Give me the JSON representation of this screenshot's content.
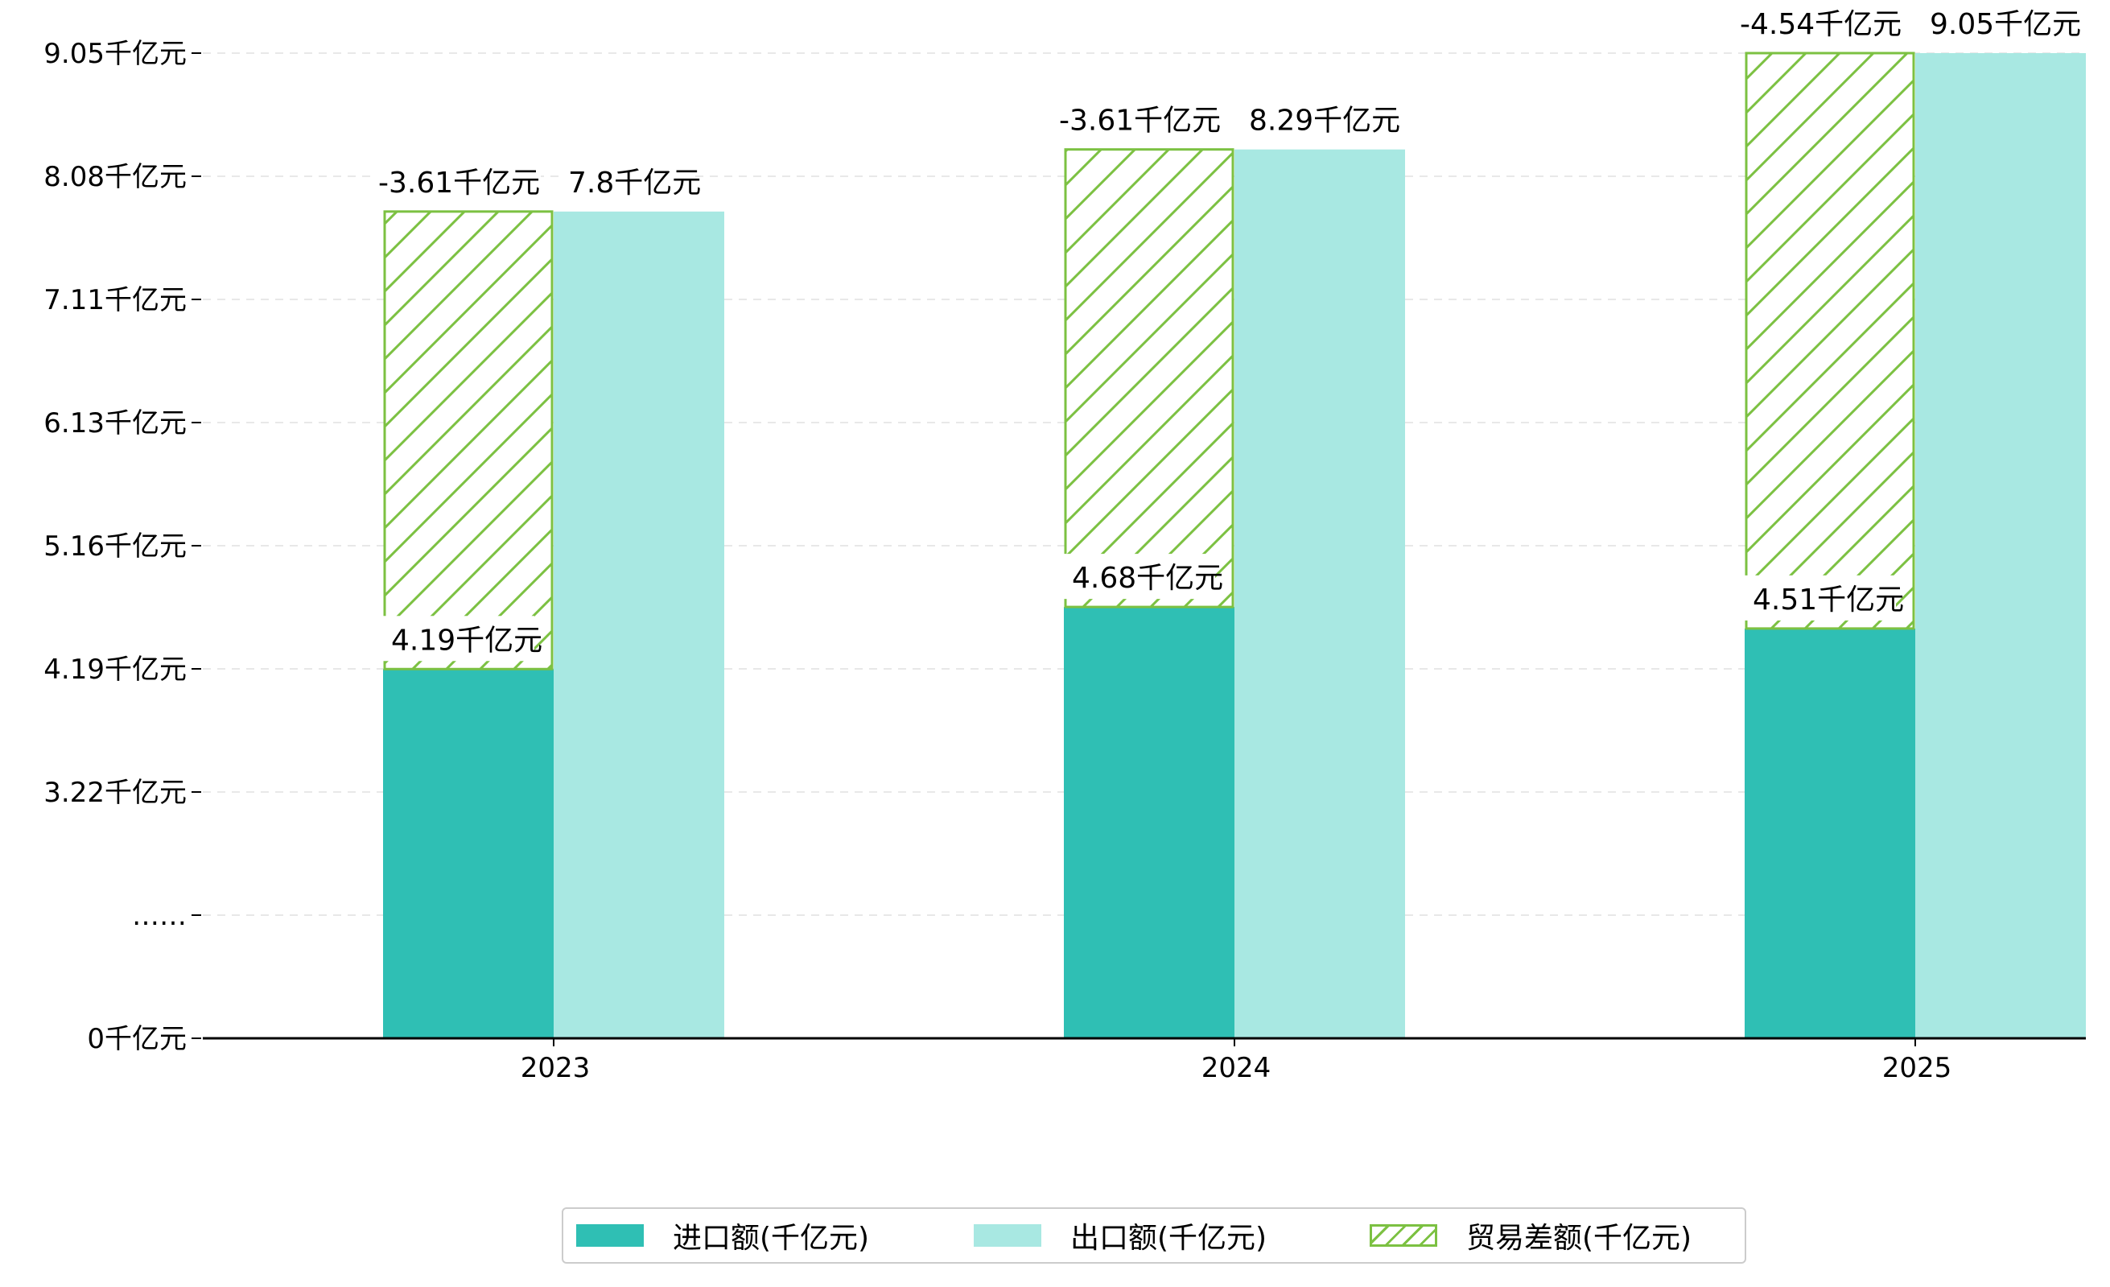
{
  "colors": {
    "import": "#2fbfb4",
    "export": "#a8e8e2",
    "balance": "#7cc142",
    "grid": "#e8e8e8",
    "axis": "#000000"
  },
  "chart_data": {
    "type": "bar",
    "categories": [
      "2023",
      "2024",
      "2025"
    ],
    "ylim": [
      0,
      9.05
    ],
    "y_tick_labels": [
      "0千亿元",
      "……",
      "3.22千亿元",
      "4.19千亿元",
      "5.16千亿元",
      "6.13千亿元",
      "7.11千亿元",
      "8.08千亿元",
      "9.05千亿元"
    ],
    "grid": true,
    "legend_position": "bottom-center",
    "series": [
      {
        "name": "进口额(千亿元)",
        "values": [
          4.19,
          4.68,
          4.51
        ],
        "labels": [
          "4.19千亿元",
          "4.68千亿元",
          "4.51千亿元"
        ]
      },
      {
        "name": "出口额(千亿元)",
        "values": [
          7.8,
          8.29,
          9.05
        ],
        "labels": [
          "7.8千亿元",
          "8.29千亿元",
          "9.05千亿元"
        ]
      },
      {
        "name": "贸易差额(千亿元)",
        "values": [
          -3.61,
          -3.61,
          -4.54
        ],
        "labels": [
          "-3.61千亿元",
          "-3.61千亿元",
          "-4.54千亿元"
        ],
        "style": "hatched, stacked on import"
      }
    ]
  }
}
